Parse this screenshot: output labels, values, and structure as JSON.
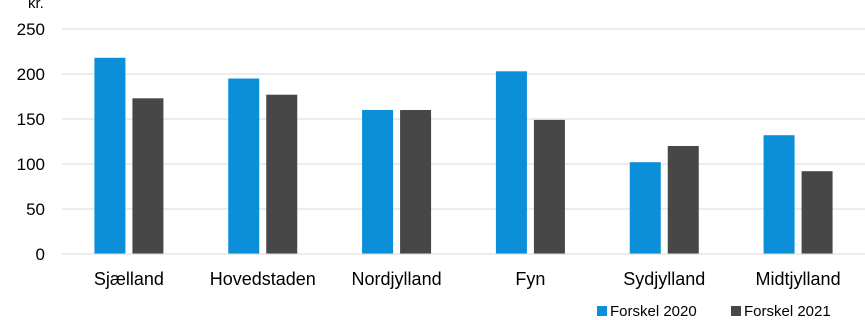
{
  "chart_data": {
    "type": "bar",
    "title": "",
    "ylabel": "kr.",
    "xlabel": "",
    "categories": [
      "Sjælland",
      "Hovedstaden",
      "Nordjylland",
      "Fyn",
      "Sydjylland",
      "Midtjylland"
    ],
    "series": [
      {
        "name": "Forskel 2020",
        "color": "#0a8fd8",
        "values": [
          218,
          195,
          160,
          203,
          102,
          132
        ]
      },
      {
        "name": "Forskel 2021",
        "color": "#474747",
        "values": [
          173,
          177,
          160,
          149,
          120,
          92
        ]
      }
    ],
    "ylim": [
      0,
      250
    ],
    "yticks": [
      "0",
      "50",
      "100",
      "150",
      "200",
      "250"
    ],
    "grid": true,
    "legend": "bottom-right"
  }
}
